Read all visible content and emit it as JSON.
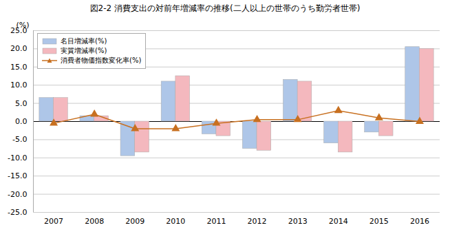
{
  "chart_data": {
    "type": "bar",
    "title": "図2-2  消費支出の対前年増減率の推移(二人以上の世帯のうち勤労者世帯)",
    "ylabel": "(%)",
    "categories": [
      "2007",
      "2008",
      "2009",
      "2010",
      "2011",
      "2012",
      "2013",
      "2014",
      "2015",
      "2016"
    ],
    "series": [
      {
        "name": "名目増減率(%)",
        "type": "bar",
        "color": "#aec6e8",
        "values": [
          6.5,
          1.5,
          -9.5,
          11.0,
          -3.5,
          -7.5,
          11.5,
          -6.0,
          -3.0,
          20.5
        ]
      },
      {
        "name": "実質増減率(%)",
        "type": "bar",
        "color": "#f4b8be",
        "values": [
          6.5,
          1.5,
          -8.5,
          12.5,
          -4.0,
          -8.0,
          11.0,
          -8.5,
          -4.0,
          20.0
        ]
      },
      {
        "name": "消費者物価指数変化率(%)",
        "type": "line",
        "color": "#c87020",
        "marker": "triangle",
        "values": [
          -0.5,
          2.0,
          -2.0,
          -2.0,
          -0.5,
          0.5,
          0.5,
          3.0,
          1.0,
          0.0
        ]
      }
    ],
    "ylim": [
      -25.0,
      25.0
    ],
    "yticks": [
      {
        "value": -25.0,
        "label": "-25.0"
      },
      {
        "value": -20.0,
        "label": "-20.0"
      },
      {
        "value": -15.0,
        "label": "-15.0"
      },
      {
        "value": -10.0,
        "label": "-10.0"
      },
      {
        "value": -5.0,
        "label": "-5.0"
      },
      {
        "value": 0.0,
        "label": "0.0"
      },
      {
        "value": 5.0,
        "label": "5.0"
      },
      {
        "value": 10.0,
        "label": "10.0"
      },
      {
        "value": 15.0,
        "label": "15.0"
      },
      {
        "value": 20.0,
        "label": "20.0"
      },
      {
        "value": 25.0,
        "label": "25.0"
      }
    ],
    "grid": true,
    "legend": "upper left"
  }
}
